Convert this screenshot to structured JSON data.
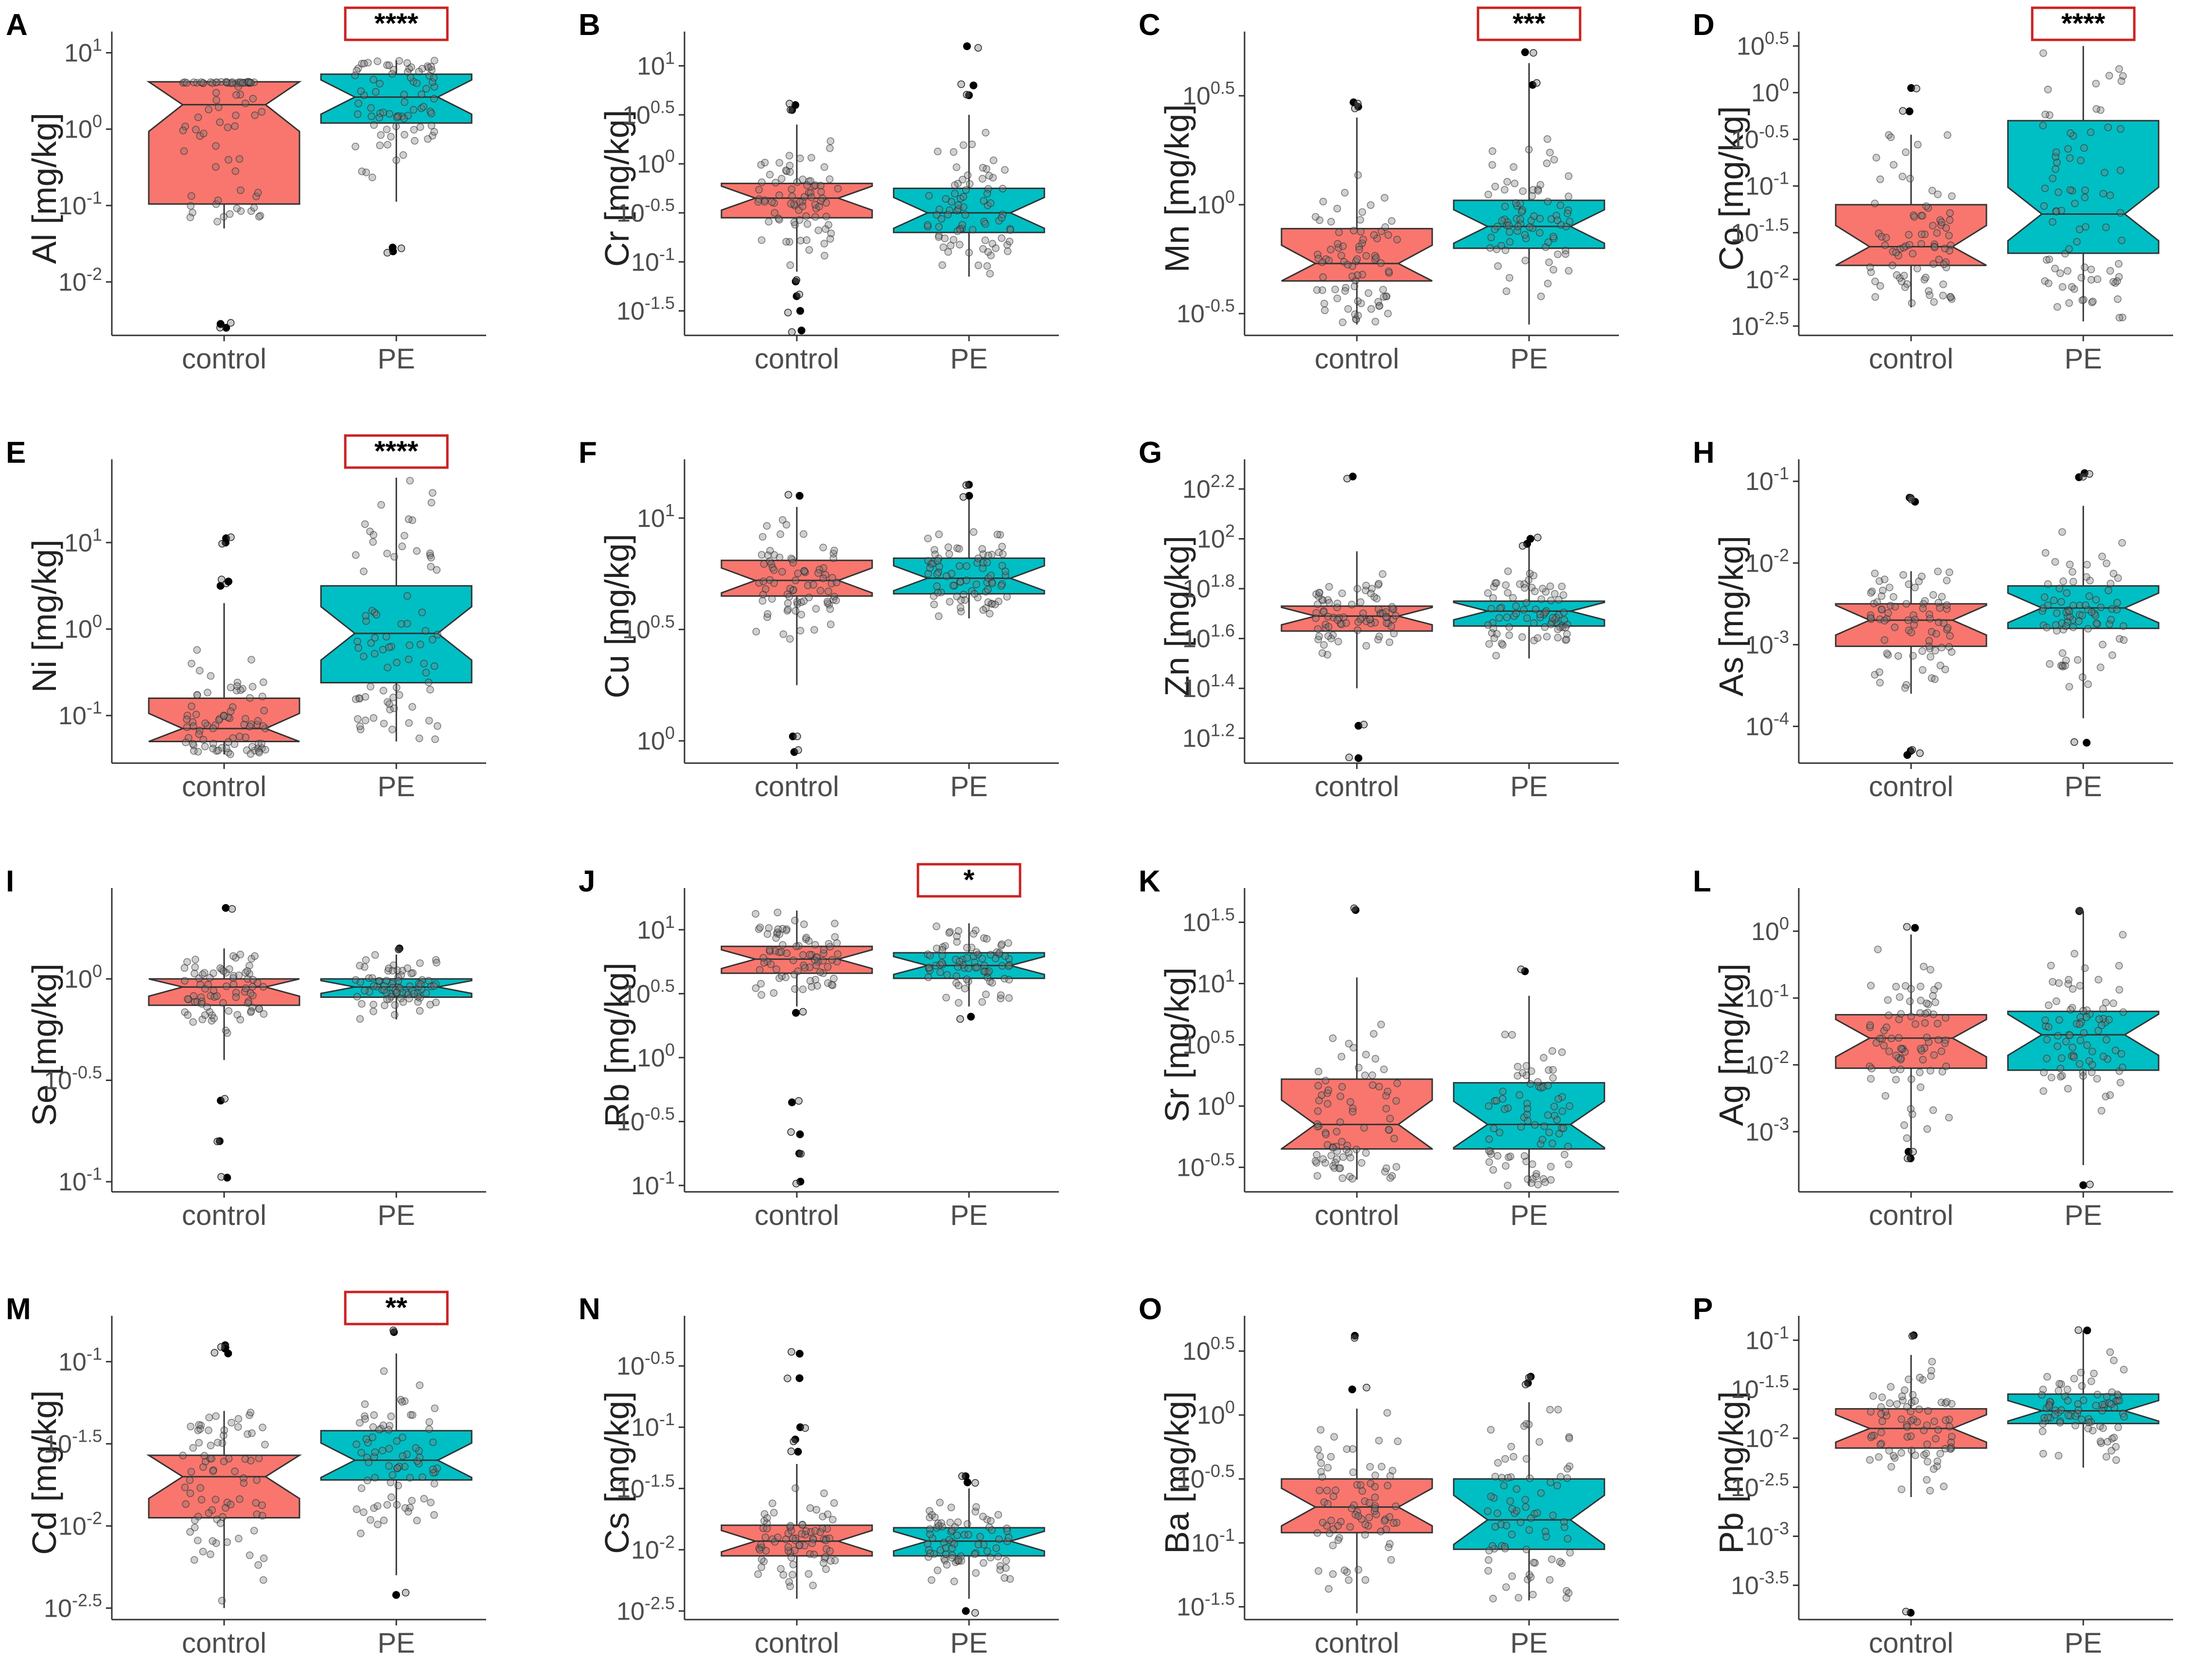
{
  "figure": {
    "y_unit": "[mg/kg]",
    "groups": [
      "control",
      "PE"
    ],
    "colors": {
      "control": "#F8766D",
      "PE": "#00BFC4",
      "point": "#000000",
      "axis": "#333333",
      "sig_box": "#cc2222",
      "text": "#222222"
    }
  },
  "chart_data": [
    {
      "panel": "A",
      "element": "Al",
      "type": "boxplot",
      "scale": "log10",
      "ylim": [
        -2.7,
        1.15
      ],
      "yticks": [
        {
          "v": 1,
          "l": "10^1"
        },
        {
          "v": 0,
          "l": "10^0"
        },
        {
          "v": -1,
          "l": "10^-1"
        },
        {
          "v": -2,
          "l": "10^-2"
        }
      ],
      "significance": "****",
      "boxes": {
        "control": {
          "whiskers": [
            -1.3,
            0.6
          ],
          "q": [
            -0.98,
            0.32,
            0.62
          ]
        },
        "PE": {
          "whiskers": [
            -0.95,
            0.9
          ],
          "q": [
            0.08,
            0.42,
            0.72
          ]
        }
      },
      "outliers": {
        "control": [
          -2.6,
          -2.55
        ],
        "PE": [
          -1.6,
          -1.55
        ]
      }
    },
    {
      "panel": "B",
      "element": "Cr",
      "type": "boxplot",
      "scale": "log10",
      "ylim": [
        -1.75,
        1.25
      ],
      "yticks": [
        {
          "v": 1,
          "l": "10^1"
        },
        {
          "v": 0.5,
          "l": "10^0.5"
        },
        {
          "v": 0,
          "l": "10^0"
        },
        {
          "v": -0.5,
          "l": "10^-0.5"
        },
        {
          "v": -1,
          "l": "10^-1"
        },
        {
          "v": -1.5,
          "l": "10^-1.5"
        }
      ],
      "significance": "",
      "boxes": {
        "control": {
          "whiskers": [
            -1.1,
            0.4
          ],
          "q": [
            -0.55,
            -0.35,
            -0.2
          ]
        },
        "PE": {
          "whiskers": [
            -1.15,
            0.5
          ],
          "q": [
            -0.7,
            -0.5,
            -0.25
          ]
        }
      },
      "outliers": {
        "control": [
          0.55,
          0.6,
          -1.2,
          -1.35,
          -1.5,
          -1.7
        ],
        "PE": [
          1.2,
          0.8,
          0.7
        ]
      }
    },
    {
      "panel": "C",
      "element": "Mn",
      "type": "boxplot",
      "scale": "log10",
      "ylim": [
        -0.6,
        0.75
      ],
      "yticks": [
        {
          "v": 0.5,
          "l": "10^0.5"
        },
        {
          "v": 0,
          "l": "10^0"
        },
        {
          "v": -0.5,
          "l": "10^-0.5"
        }
      ],
      "significance": "***",
      "boxes": {
        "control": {
          "whiskers": [
            -0.55,
            0.4
          ],
          "q": [
            -0.35,
            -0.27,
            -0.11
          ]
        },
        "PE": {
          "whiskers": [
            -0.55,
            0.65
          ],
          "q": [
            -0.2,
            -0.1,
            0.02
          ]
        }
      },
      "outliers": {
        "control": [
          0.45,
          0.47
        ],
        "PE": [
          0.7,
          0.55
        ]
      }
    },
    {
      "panel": "D",
      "element": "Co",
      "type": "boxplot",
      "scale": "log10",
      "ylim": [
        -2.6,
        0.55
      ],
      "yticks": [
        {
          "v": 0.5,
          "l": "10^0.5"
        },
        {
          "v": 0,
          "l": "10^0"
        },
        {
          "v": -0.5,
          "l": "10^-0.5"
        },
        {
          "v": -1,
          "l": "10^-1"
        },
        {
          "v": -1.5,
          "l": "10^-1.5"
        },
        {
          "v": -2,
          "l": "10^-2"
        },
        {
          "v": -2.5,
          "l": "10^-2.5"
        }
      ],
      "significance": "****",
      "boxes": {
        "control": {
          "whiskers": [
            -2.3,
            -0.45
          ],
          "q": [
            -1.85,
            -1.65,
            -1.2
          ]
        },
        "PE": {
          "whiskers": [
            -2.45,
            0.5
          ],
          "q": [
            -1.72,
            -1.3,
            -0.3
          ]
        }
      },
      "outliers": {
        "control": [
          0.05,
          -0.2
        ],
        "PE": []
      }
    },
    {
      "panel": "E",
      "element": "Ni",
      "type": "boxplot",
      "scale": "log10",
      "ylim": [
        -1.55,
        1.85
      ],
      "yticks": [
        {
          "v": 1,
          "l": "10^1"
        },
        {
          "v": 0,
          "l": "10^0"
        },
        {
          "v": -1,
          "l": "10^-1"
        }
      ],
      "significance": "****",
      "boxes": {
        "control": {
          "whiskers": [
            -1.45,
            0.3
          ],
          "q": [
            -1.3,
            -1.15,
            -0.8
          ]
        },
        "PE": {
          "whiskers": [
            -1.3,
            1.75
          ],
          "q": [
            -0.62,
            -0.05,
            0.5
          ]
        }
      },
      "outliers": {
        "control": [
          1.0,
          1.05,
          0.5,
          0.55
        ],
        "PE": []
      }
    },
    {
      "panel": "F",
      "element": "Cu",
      "type": "boxplot",
      "scale": "log10",
      "ylim": [
        -0.1,
        1.22
      ],
      "yticks": [
        {
          "v": 1,
          "l": "10^1"
        },
        {
          "v": 0.5,
          "l": "10^0.5"
        },
        {
          "v": 0,
          "l": "10^0"
        }
      ],
      "significance": "",
      "boxes": {
        "control": {
          "whiskers": [
            0.25,
            1.05
          ],
          "q": [
            0.65,
            0.72,
            0.81
          ]
        },
        "PE": {
          "whiskers": [
            0.55,
            1.1
          ],
          "q": [
            0.66,
            0.73,
            0.82
          ]
        }
      },
      "outliers": {
        "control": [
          0.02,
          -0.05,
          1.1
        ],
        "PE": [
          1.15,
          1.1
        ]
      }
    },
    {
      "panel": "G",
      "element": "Zn",
      "type": "boxplot",
      "scale": "log10",
      "ylim": [
        1.1,
        2.28
      ],
      "yticks": [
        {
          "v": 2.2,
          "l": "10^2.2"
        },
        {
          "v": 2.0,
          "l": "10^2"
        },
        {
          "v": 1.8,
          "l": "10^1.8"
        },
        {
          "v": 1.6,
          "l": "10^1.6"
        },
        {
          "v": 1.4,
          "l": "10^1.4"
        },
        {
          "v": 1.2,
          "l": "10^1.2"
        }
      ],
      "significance": "",
      "boxes": {
        "control": {
          "whiskers": [
            1.4,
            1.95
          ],
          "q": [
            1.63,
            1.69,
            1.73
          ]
        },
        "PE": {
          "whiskers": [
            1.52,
            2.0
          ],
          "q": [
            1.65,
            1.71,
            1.75
          ]
        }
      },
      "outliers": {
        "control": [
          2.25,
          1.25,
          1.12
        ],
        "PE": [
          2.0,
          1.98
        ]
      }
    },
    {
      "panel": "H",
      "element": "As",
      "type": "boxplot",
      "scale": "log10",
      "ylim": [
        -4.45,
        -0.85
      ],
      "yticks": [
        {
          "v": -1,
          "l": "10^-1"
        },
        {
          "v": -2,
          "l": "10^-2"
        },
        {
          "v": -3,
          "l": "10^-3"
        },
        {
          "v": -4,
          "l": "10^-4"
        }
      ],
      "significance": "",
      "boxes": {
        "control": {
          "whiskers": [
            -3.6,
            -2.1
          ],
          "q": [
            -3.02,
            -2.7,
            -2.5
          ]
        },
        "PE": {
          "whiskers": [
            -3.9,
            -1.3
          ],
          "q": [
            -2.8,
            -2.55,
            -2.28
          ]
        }
      },
      "outliers": {
        "control": [
          -1.2,
          -1.25,
          -4.3,
          -4.35
        ],
        "PE": [
          -0.9,
          -0.95,
          -4.2
        ]
      }
    },
    {
      "panel": "I",
      "element": "Se",
      "type": "boxplot",
      "scale": "log10",
      "ylim": [
        -1.05,
        0.4
      ],
      "yticks": [
        {
          "v": 0,
          "l": "10^0"
        },
        {
          "v": -0.5,
          "l": "10^-0.5"
        },
        {
          "v": -1,
          "l": "10^-1"
        }
      ],
      "significance": "",
      "boxes": {
        "control": {
          "whiskers": [
            -0.4,
            0.15
          ],
          "q": [
            -0.13,
            -0.04,
            0.0
          ]
        },
        "PE": {
          "whiskers": [
            -0.2,
            0.12
          ],
          "q": [
            -0.09,
            -0.04,
            0.0
          ]
        }
      },
      "outliers": {
        "control": [
          0.35,
          -0.6,
          -0.8,
          -0.98
        ],
        "PE": [
          0.15
        ]
      }
    },
    {
      "panel": "J",
      "element": "Rb",
      "type": "boxplot",
      "scale": "log10",
      "ylim": [
        -1.05,
        1.25
      ],
      "yticks": [
        {
          "v": 1,
          "l": "10^1"
        },
        {
          "v": 0.5,
          "l": "10^0.5"
        },
        {
          "v": 0,
          "l": "10^0"
        },
        {
          "v": -0.5,
          "l": "10^-0.5"
        },
        {
          "v": -1,
          "l": "10^-1"
        }
      ],
      "significance": "*",
      "boxes": {
        "control": {
          "whiskers": [
            0.4,
            1.15
          ],
          "q": [
            0.66,
            0.77,
            0.87
          ]
        },
        "PE": {
          "whiskers": [
            0.4,
            1.05
          ],
          "q": [
            0.62,
            0.72,
            0.82
          ]
        }
      },
      "outliers": {
        "control": [
          0.35,
          -0.35,
          -0.6,
          -0.75,
          -0.97
        ],
        "PE": [
          0.32
        ]
      }
    },
    {
      "panel": "K",
      "element": "Sr",
      "type": "boxplot",
      "scale": "log10",
      "ylim": [
        -0.7,
        1.7
      ],
      "yticks": [
        {
          "v": 1.5,
          "l": "10^1.5"
        },
        {
          "v": 1,
          "l": "10^1"
        },
        {
          "v": 0.5,
          "l": "10^0.5"
        },
        {
          "v": 0,
          "l": "10^0"
        },
        {
          "v": -0.5,
          "l": "10^-0.5"
        }
      ],
      "significance": "",
      "boxes": {
        "control": {
          "whiskers": [
            -0.6,
            1.05
          ],
          "q": [
            -0.35,
            -0.15,
            0.22
          ]
        },
        "PE": {
          "whiskers": [
            -0.65,
            0.9
          ],
          "q": [
            -0.35,
            -0.15,
            0.19
          ]
        }
      },
      "outliers": {
        "control": [
          1.6
        ],
        "PE": [
          1.1
        ]
      }
    },
    {
      "panel": "L",
      "element": "Ag",
      "type": "boxplot",
      "scale": "log10",
      "ylim": [
        -3.9,
        0.5
      ],
      "yticks": [
        {
          "v": 0,
          "l": "10^0"
        },
        {
          "v": -1,
          "l": "10^-1"
        },
        {
          "v": -2,
          "l": "10^-2"
        },
        {
          "v": -3,
          "l": "10^-3"
        }
      ],
      "significance": "",
      "boxes": {
        "control": {
          "whiskers": [
            -3.3,
            -0.05
          ],
          "q": [
            -2.05,
            -1.6,
            -1.25
          ]
        },
        "PE": {
          "whiskers": [
            -3.5,
            0.3
          ],
          "q": [
            -2.08,
            -1.55,
            -1.2
          ]
        }
      },
      "outliers": {
        "control": [
          0.05,
          -3.3,
          -3.4
        ],
        "PE": [
          0.3,
          -3.8
        ]
      }
    },
    {
      "panel": "M",
      "element": "Cd",
      "type": "boxplot",
      "scale": "log10",
      "ylim": [
        -2.57,
        -0.78
      ],
      "yticks": [
        {
          "v": -1,
          "l": "10^-1"
        },
        {
          "v": -1.5,
          "l": "10^-1.5"
        },
        {
          "v": -2,
          "l": "10^-2"
        },
        {
          "v": -2.5,
          "l": "10^-2.5"
        }
      ],
      "significance": "**",
      "boxes": {
        "control": {
          "whiskers": [
            -2.5,
            -1.3
          ],
          "q": [
            -1.95,
            -1.7,
            -1.57
          ]
        },
        "PE": {
          "whiskers": [
            -2.3,
            -0.95
          ],
          "q": [
            -1.72,
            -1.6,
            -1.42
          ]
        }
      },
      "outliers": {
        "control": [
          -0.9,
          -0.92,
          -0.95
        ],
        "PE": [
          -0.82,
          -2.42
        ]
      }
    },
    {
      "panel": "N",
      "element": "Cs",
      "type": "boxplot",
      "scale": "log10",
      "ylim": [
        -2.57,
        -0.17
      ],
      "yticks": [
        {
          "v": -0.5,
          "l": "10^-0.5"
        },
        {
          "v": -1,
          "l": "10^-1"
        },
        {
          "v": -1.5,
          "l": "10^-1.5"
        },
        {
          "v": -2,
          "l": "10^-2"
        },
        {
          "v": -2.5,
          "l": "10^-2.5"
        }
      ],
      "significance": "",
      "boxes": {
        "control": {
          "whiskers": [
            -2.4,
            -1.3
          ],
          "q": [
            -2.05,
            -1.93,
            -1.8
          ]
        },
        "PE": {
          "whiskers": [
            -2.4,
            -1.5
          ],
          "q": [
            -2.05,
            -1.93,
            -1.82
          ]
        }
      },
      "outliers": {
        "control": [
          -0.4,
          -0.6,
          -1.0,
          -1.1,
          -1.2
        ],
        "PE": [
          -1.4,
          -1.45,
          -2.5
        ]
      }
    },
    {
      "panel": "O",
      "element": "Ba",
      "type": "boxplot",
      "scale": "log10",
      "ylim": [
        -1.6,
        0.7
      ],
      "yticks": [
        {
          "v": 0.5,
          "l": "10^0.5"
        },
        {
          "v": 0,
          "l": "10^0"
        },
        {
          "v": -0.5,
          "l": "10^-0.5"
        },
        {
          "v": -1,
          "l": "10^-1"
        },
        {
          "v": -1.5,
          "l": "10^-1.5"
        }
      ],
      "significance": "",
      "boxes": {
        "control": {
          "whiskers": [
            -1.55,
            0.05
          ],
          "q": [
            -0.92,
            -0.72,
            -0.5
          ]
        },
        "PE": {
          "whiskers": [
            -1.45,
            0.1
          ],
          "q": [
            -1.05,
            -0.82,
            -0.5
          ]
        }
      },
      "outliers": {
        "control": [
          0.62,
          0.2
        ],
        "PE": [
          0.25,
          0.3
        ]
      }
    },
    {
      "panel": "P",
      "element": "Pb",
      "type": "boxplot",
      "scale": "log10",
      "ylim": [
        -3.85,
        -0.85
      ],
      "yticks": [
        {
          "v": -1,
          "l": "10^-1"
        },
        {
          "v": -1.5,
          "l": "10^-1.5"
        },
        {
          "v": -2,
          "l": "10^-2"
        },
        {
          "v": -2.5,
          "l": "10^-2.5"
        },
        {
          "v": -3,
          "l": "10^-3"
        },
        {
          "v": -3.5,
          "l": "10^-3.5"
        }
      ],
      "significance": "",
      "boxes": {
        "control": {
          "whiskers": [
            -2.6,
            -1.15
          ],
          "q": [
            -2.1,
            -1.9,
            -1.7
          ]
        },
        "PE": {
          "whiskers": [
            -2.3,
            -0.9
          ],
          "q": [
            -1.85,
            -1.72,
            -1.55
          ]
        }
      },
      "outliers": {
        "control": [
          -0.95,
          -3.78
        ],
        "PE": [
          -0.9
        ]
      }
    }
  ]
}
